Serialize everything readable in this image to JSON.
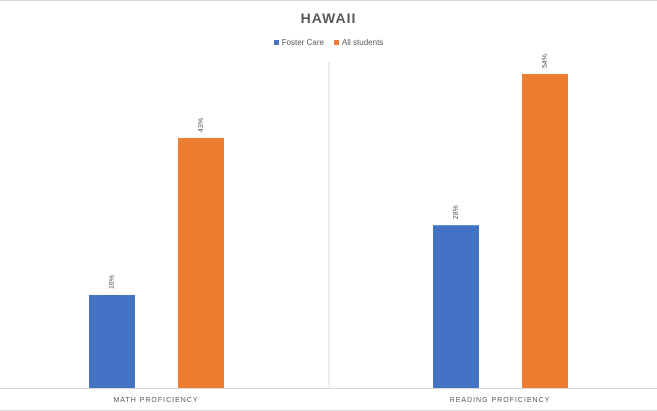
{
  "chart_data": {
    "type": "bar",
    "title": "HAWAII",
    "categories": [
      "MATH PROFICIENCY",
      "READING PROFICIENCY"
    ],
    "series": [
      {
        "name": "Foster Care",
        "values": [
          16,
          28
        ],
        "labels": [
          "16%",
          "28%"
        ],
        "color": "#4472C4"
      },
      {
        "name": "All students",
        "values": [
          43,
          54
        ],
        "labels": [
          "43%",
          "54%"
        ],
        "color": "#ED7D31"
      }
    ],
    "ylim": [
      0,
      60
    ],
    "grid": false,
    "legend_position": "top-center"
  }
}
